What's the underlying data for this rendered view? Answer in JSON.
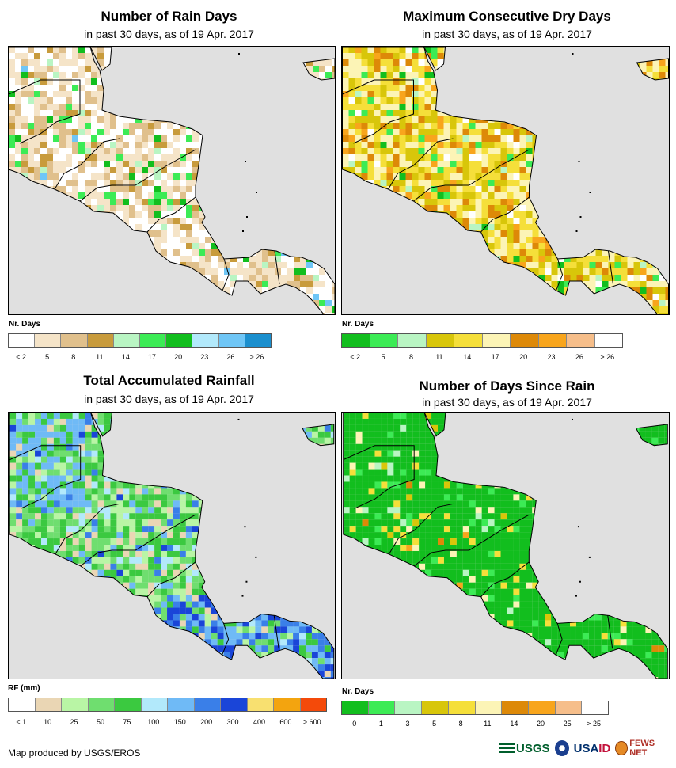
{
  "panels": {
    "rain_days": {
      "title": "Number of Rain Days",
      "subtitle": "in past 30 days, as of 19 Apr. 2017",
      "legend_title": "Nr. Days",
      "legend_colors": [
        "#ffffff",
        "#f5e4c8",
        "#e0c08c",
        "#c89b3c",
        "#b9f5c3",
        "#3ceb55",
        "#12be1e",
        "#b2e9fb",
        "#6fc6f6",
        "#1b8fce"
      ],
      "legend_ticks": [
        "< 2",
        "5",
        "8",
        "11",
        "14",
        "17",
        "20",
        "23",
        "26",
        "> 26"
      ]
    },
    "dry_days": {
      "title": "Maximum Consecutive Dry Days",
      "subtitle": "in past 30 days, as of 19 Apr. 2017",
      "legend_title": "Nr. Days",
      "legend_colors": [
        "#12be1e",
        "#3ceb55",
        "#b9f5c3",
        "#d8c60a",
        "#f5df3a",
        "#fcf4b6",
        "#dd8908",
        "#f8a51c",
        "#f6be8a",
        "#ffffff"
      ],
      "legend_ticks": [
        "< 2",
        "5",
        "8",
        "11",
        "14",
        "17",
        "20",
        "23",
        "26",
        "> 26"
      ]
    },
    "rainfall": {
      "title": "Total Accumulated Rainfall",
      "subtitle": "in past 30 days, as of 19 Apr. 2017",
      "legend_title": "RF (mm)",
      "legend_colors": [
        "#ffffff",
        "#ead6b4",
        "#b9f5a5",
        "#6fde6f",
        "#3bc940",
        "#b2e9fb",
        "#6fbaf6",
        "#3a7fe8",
        "#1a45d8",
        "#f8e070",
        "#f3a40f",
        "#f44a0a"
      ],
      "legend_ticks": [
        "< 1",
        "10",
        "25",
        "50",
        "75",
        "100",
        "150",
        "200",
        "300",
        "400",
        "600",
        "> 600"
      ]
    },
    "since_rain": {
      "title": "Number of Days Since Rain",
      "subtitle": "in past 30 days, as of 19 Apr. 2017",
      "legend_title": "Nr. Days",
      "legend_colors": [
        "#12be1e",
        "#3ceb55",
        "#b9f5c3",
        "#d8c60a",
        "#f5df3a",
        "#fcf4b6",
        "#dd8908",
        "#f8a51c",
        "#f6be8a",
        "#ffffff"
      ],
      "legend_ticks": [
        "0",
        "1",
        "3",
        "5",
        "8",
        "11",
        "14",
        "20",
        "25",
        "> 25"
      ]
    }
  },
  "colors": {
    "ocean": "#e0e0e0",
    "border": "#000000"
  },
  "credit": "Map produced by USGS/EROS",
  "logos": {
    "usgs": "USGS",
    "usaid_a": "USA",
    "usaid_b": "ID",
    "fews": "FEWS NET"
  }
}
